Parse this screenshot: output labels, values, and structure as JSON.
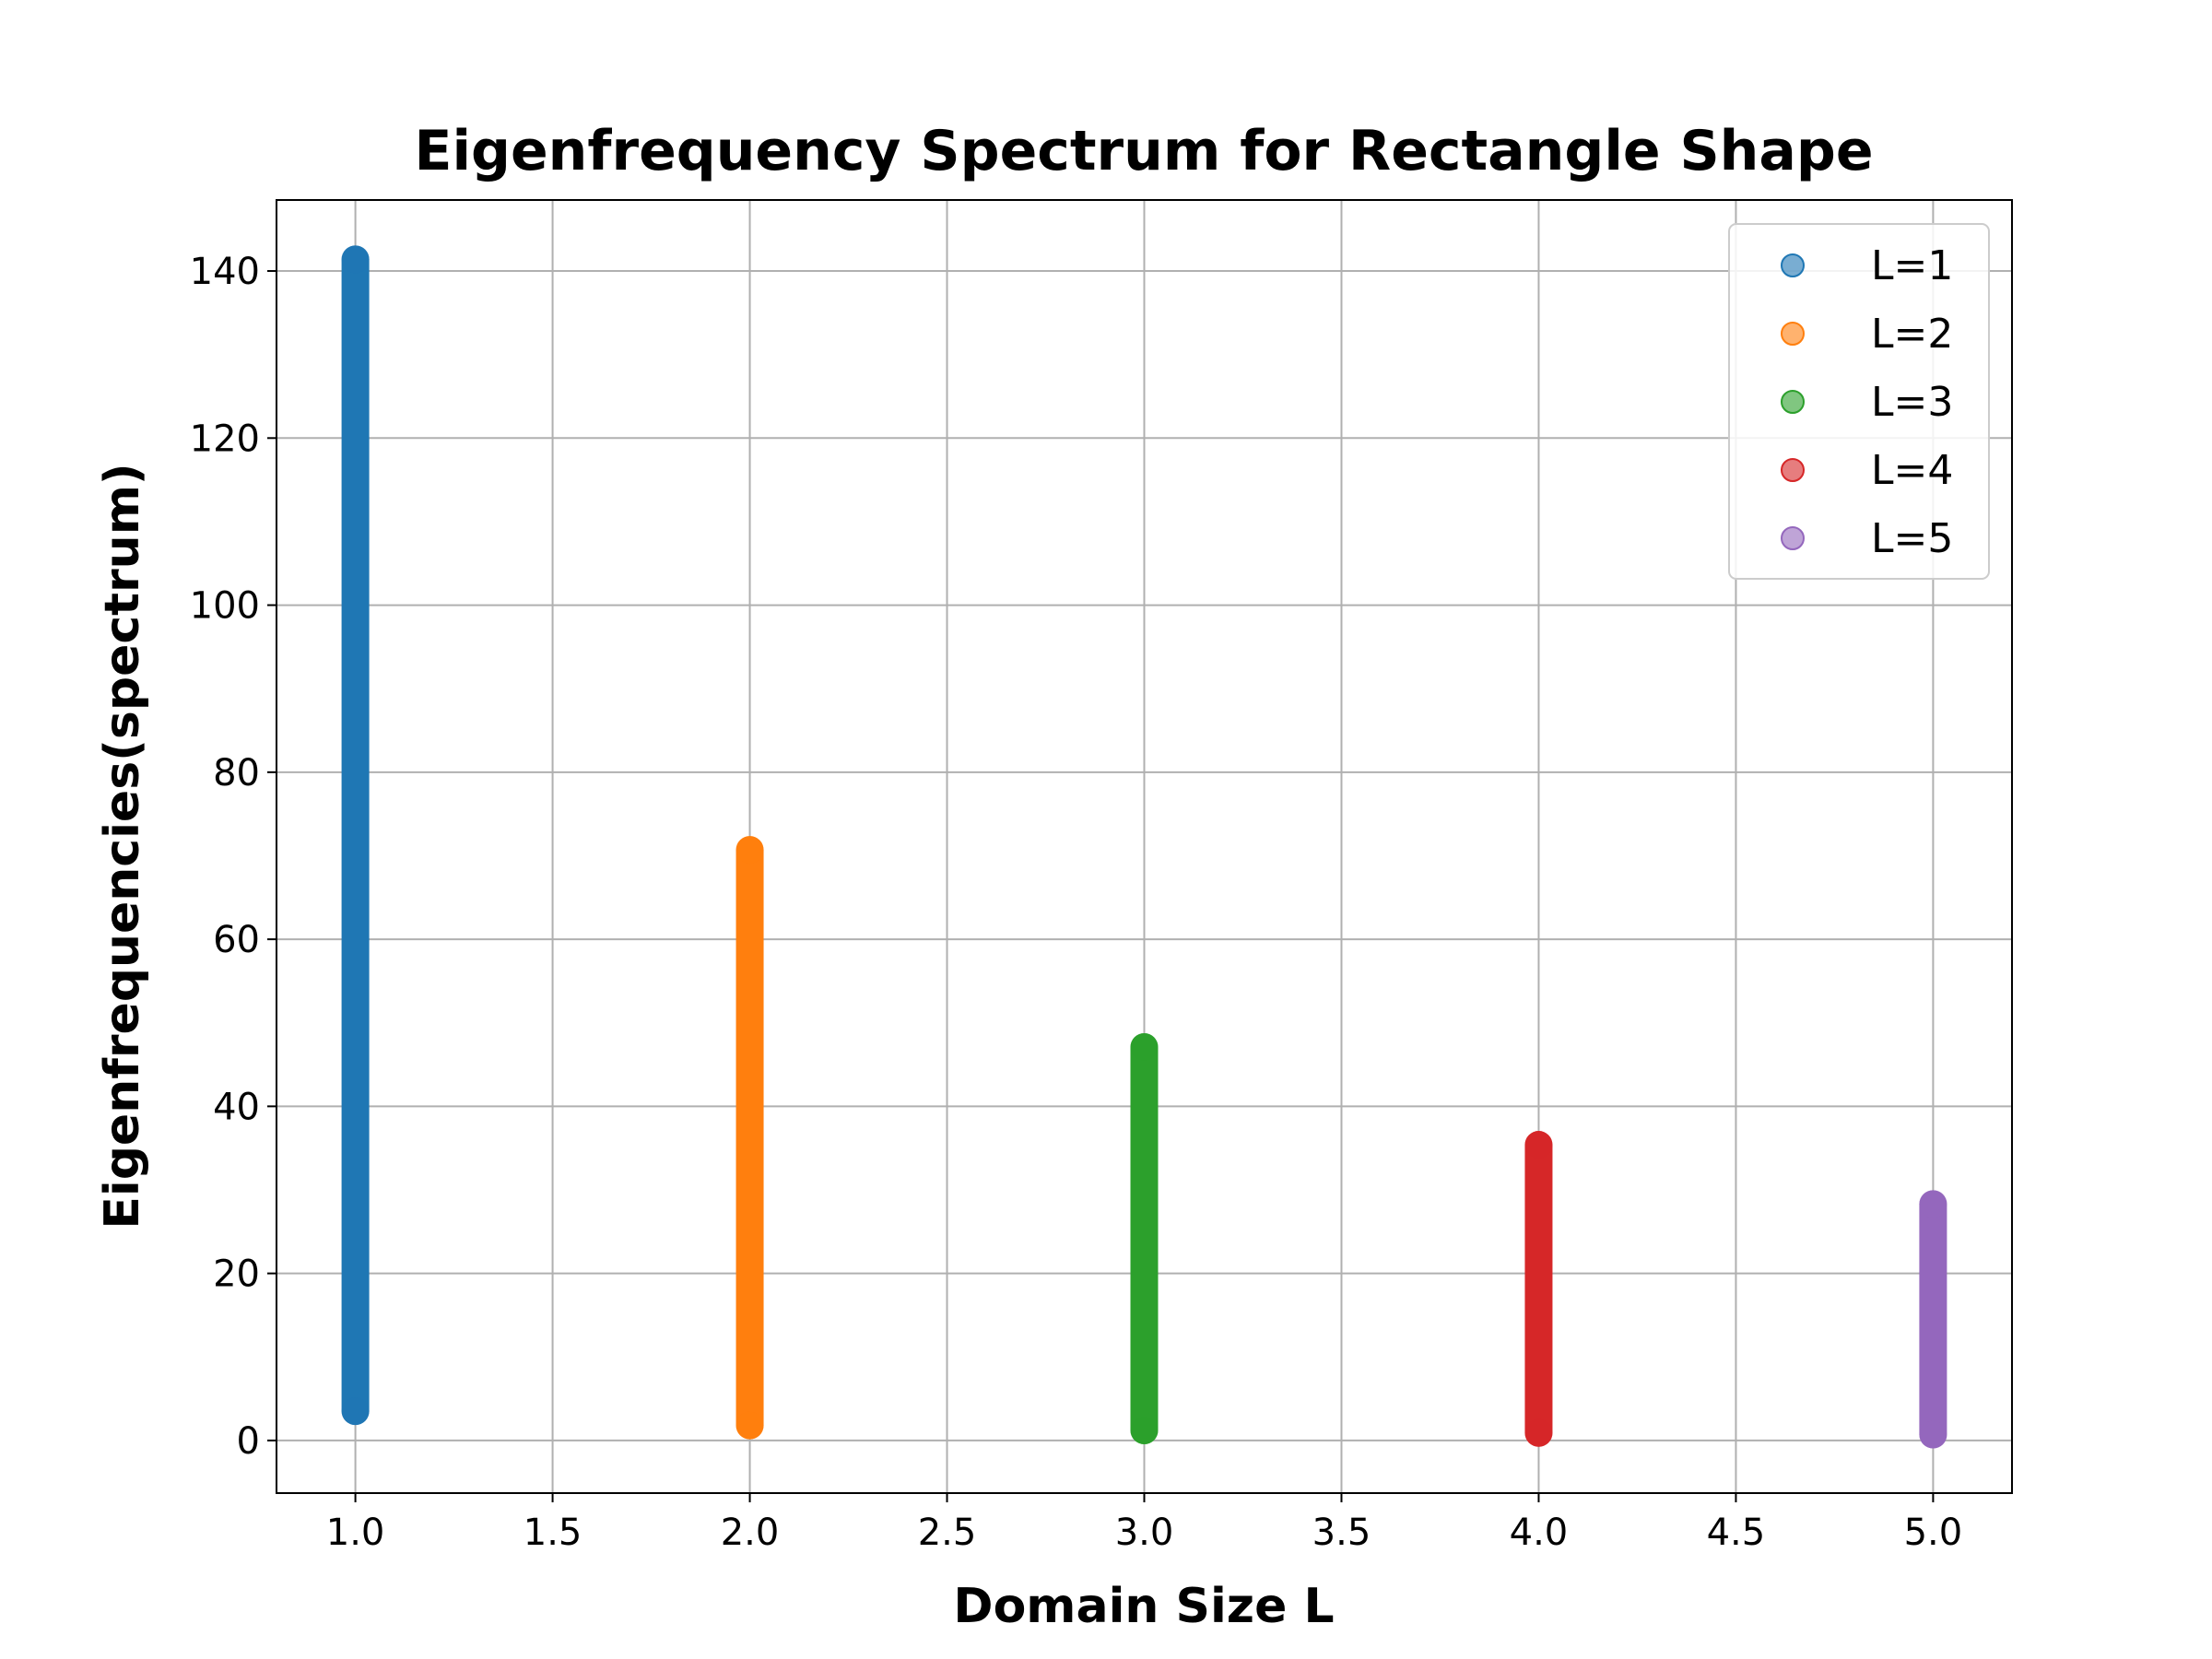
{
  "chart_data": {
    "type": "scatter",
    "title": "Eigenfrequency Spectrum for Rectangle Shape",
    "xlabel": "Domain Size L",
    "ylabel": "Eigenfrequencies(spectrum)",
    "xlim": [
      0.8,
      5.2
    ],
    "ylim": [
      -6.3,
      148.5
    ],
    "xticks": [
      "1.0",
      "1.5",
      "2.0",
      "2.5",
      "3.0",
      "3.5",
      "4.0",
      "4.5",
      "5.0"
    ],
    "yticks": [
      "0",
      "20",
      "40",
      "60",
      "80",
      "100",
      "120",
      "140"
    ],
    "grid": true,
    "legend_position": "top-right",
    "series": [
      {
        "name": "L=1",
        "x": 1,
        "min": 3.5,
        "max": 141.4,
        "color": "#1f77b4"
      },
      {
        "name": "L=2",
        "x": 2,
        "min": 1.8,
        "max": 70.7,
        "color": "#ff7f0e"
      },
      {
        "name": "L=3",
        "x": 3,
        "min": 1.2,
        "max": 47.1,
        "color": "#2ca02c"
      },
      {
        "name": "L=4",
        "x": 4,
        "min": 0.9,
        "max": 35.4,
        "color": "#d62728"
      },
      {
        "name": "L=5",
        "x": 5,
        "min": 0.7,
        "max": 28.3,
        "color": "#9467bd"
      }
    ]
  }
}
